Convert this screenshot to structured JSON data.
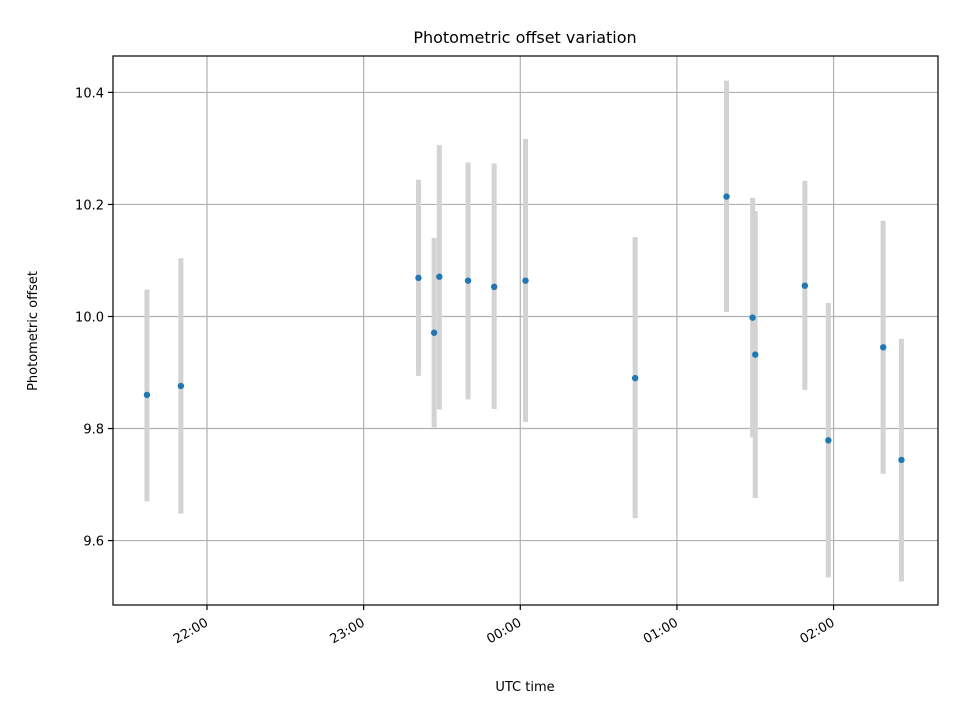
{
  "chart_data": {
    "type": "scatter",
    "title": "Photometric offset variation",
    "xlabel": "UTC time",
    "ylabel": "Photometric offset",
    "x_ticks": [
      "22:00",
      "23:00",
      "00:00",
      "01:00",
      "02:00"
    ],
    "y_ticks": [
      "9.6",
      "9.8",
      "10.0",
      "10.2",
      "10.4"
    ],
    "xlim": [
      "21:24",
      "02:40"
    ],
    "ylim": [
      9.485,
      10.465
    ],
    "grid": true,
    "errorbar_color": "#d3d3d3",
    "point_color": "#1f77b4",
    "series": [
      {
        "points": [
          {
            "x": "21:37",
            "y": 9.86,
            "err_low": 9.67,
            "err_high": 10.048
          },
          {
            "x": "21:50",
            "y": 9.876,
            "err_low": 9.648,
            "err_high": 10.104
          },
          {
            "x": "23:21",
            "y": 10.069,
            "err_low": 9.894,
            "err_high": 10.244
          },
          {
            "x": "23:27",
            "y": 9.971,
            "err_low": 9.802,
            "err_high": 10.14
          },
          {
            "x": "23:29",
            "y": 10.071,
            "err_low": 9.834,
            "err_high": 10.306
          },
          {
            "x": "23:40",
            "y": 10.064,
            "err_low": 9.852,
            "err_high": 10.275
          },
          {
            "x": "23:50",
            "y": 10.053,
            "err_low": 9.835,
            "err_high": 10.273
          },
          {
            "x": "00:02",
            "y": 10.064,
            "err_low": 9.812,
            "err_high": 10.317
          },
          {
            "x": "00:44",
            "y": 9.89,
            "err_low": 9.64,
            "err_high": 10.142
          },
          {
            "x": "01:19",
            "y": 10.214,
            "err_low": 10.008,
            "err_high": 10.421
          },
          {
            "x": "01:29",
            "y": 9.998,
            "err_low": 9.784,
            "err_high": 10.212
          },
          {
            "x": "01:30",
            "y": 9.932,
            "err_low": 9.676,
            "err_high": 10.188
          },
          {
            "x": "01:49",
            "y": 10.055,
            "err_low": 9.869,
            "err_high": 10.242
          },
          {
            "x": "01:58",
            "y": 9.779,
            "err_low": 9.534,
            "err_high": 10.024
          },
          {
            "x": "02:19",
            "y": 9.945,
            "err_low": 9.719,
            "err_high": 10.171
          },
          {
            "x": "02:26",
            "y": 9.744,
            "err_low": 9.527,
            "err_high": 9.96
          }
        ]
      }
    ]
  }
}
